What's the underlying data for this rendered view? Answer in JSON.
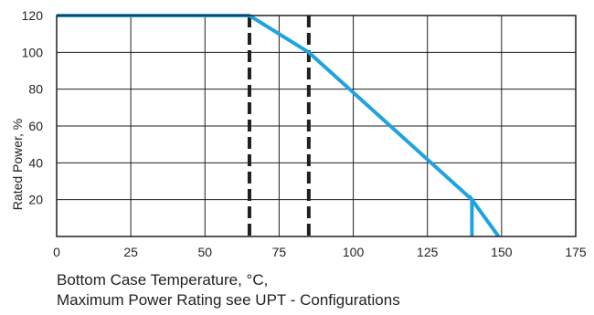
{
  "chart_data": {
    "type": "line",
    "title": "",
    "xlabel_lines": [
      "Bottom Case Temperature, °C,",
      "Maximum Power Rating see UPT - Configurations"
    ],
    "ylabel": "Rated Power, %",
    "xlim": [
      0,
      175
    ],
    "ylim": [
      0,
      120
    ],
    "x_ticks": [
      0,
      25,
      50,
      75,
      100,
      125,
      150,
      175
    ],
    "y_ticks": [
      20,
      40,
      60,
      80,
      100,
      120
    ],
    "grid": true,
    "series": [
      {
        "color": "#1fa3e0",
        "points": [
          [
            0,
            120
          ],
          [
            65,
            120
          ],
          [
            75,
            110
          ],
          [
            85,
            100
          ],
          [
            140,
            20
          ],
          [
            140,
            0
          ],
          [
            140,
            20
          ],
          [
            149,
            0
          ]
        ]
      }
    ],
    "reference_lines": [
      {
        "axis": "x",
        "value": 65,
        "style": "dashed",
        "color": "#231f20"
      },
      {
        "axis": "x",
        "value": 85,
        "style": "dashed",
        "color": "#231f20"
      }
    ]
  }
}
